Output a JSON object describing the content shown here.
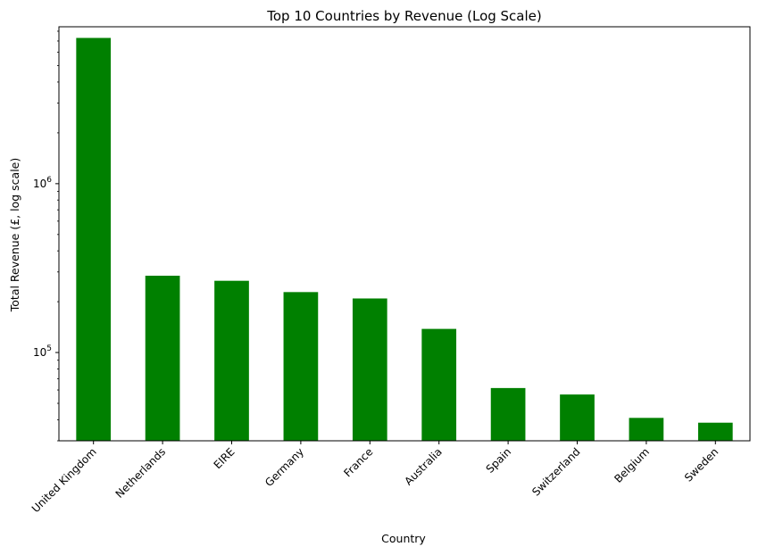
{
  "chart_data": {
    "type": "bar",
    "title": "Top 10 Countries by Revenue (Log Scale)",
    "xlabel": "Country",
    "ylabel": "Total Revenue (£, log scale)",
    "yscale": "log",
    "ylim": [
      30000,
      8500000
    ],
    "bar_color": "#008000",
    "grid": false,
    "categories": [
      "United Kingdom",
      "Netherlands",
      "EIRE",
      "Germany",
      "France",
      "Australia",
      "Spain",
      "Switzerland",
      "Belgium",
      "Sweden"
    ],
    "values": [
      7300000,
      285000,
      266000,
      228000,
      209000,
      138000,
      61600,
      56400,
      41000,
      38400
    ],
    "yticks": [
      {
        "value": 100000,
        "base": "10",
        "exp": "5"
      },
      {
        "value": 1000000,
        "base": "10",
        "exp": "6"
      }
    ]
  }
}
